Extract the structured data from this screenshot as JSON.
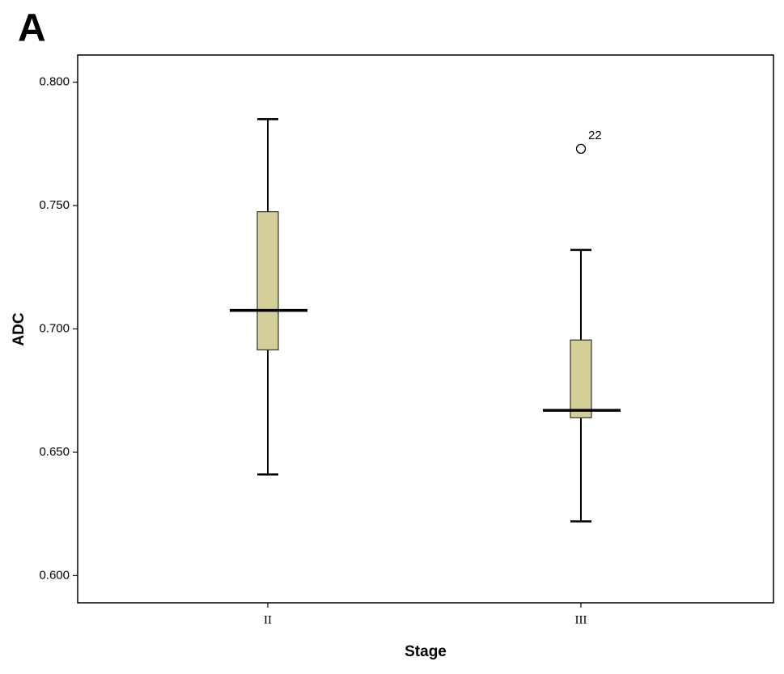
{
  "chart_data": {
    "type": "box",
    "panel_label": "A",
    "x_label": "Stage",
    "y_label": "ADC",
    "categories": [
      "II",
      "III"
    ],
    "color": "#d5cf97",
    "boxes": [
      {
        "whisker_low": 0.641,
        "q1": 0.6915,
        "median": 0.7075,
        "q3": 0.7475,
        "whisker_high": 0.785
      },
      {
        "whisker_low": 0.622,
        "q1": 0.664,
        "median": 0.667,
        "q3": 0.6955,
        "whisker_high": 0.732
      }
    ],
    "outliers": [
      {
        "category": "III",
        "value": 0.773,
        "label": "22"
      }
    ],
    "ylim": [
      0.589,
      0.811
    ],
    "yticks": [
      {
        "value": 0.6,
        "label": "0.600"
      },
      {
        "value": 0.65,
        "label": "0.650"
      },
      {
        "value": 0.7,
        "label": "0.700"
      },
      {
        "value": 0.75,
        "label": "0.750"
      },
      {
        "value": 0.8,
        "label": "0.800"
      }
    ]
  }
}
